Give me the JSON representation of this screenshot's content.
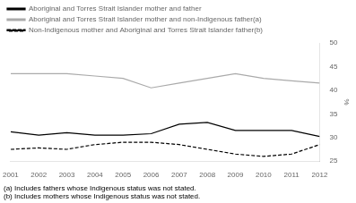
{
  "chart_data": {
    "type": "line",
    "x": [
      2001,
      2002,
      2003,
      2004,
      2005,
      2006,
      2007,
      2008,
      2009,
      2010,
      2011,
      2012
    ],
    "series": [
      {
        "name": "Aboriginal and Torres Strait Islander mother and father",
        "color": "#000000",
        "line_style": "solid",
        "values": [
          31.2,
          30.5,
          31.0,
          30.5,
          30.5,
          30.8,
          32.8,
          33.2,
          31.5,
          31.5,
          31.5,
          30.2
        ]
      },
      {
        "name": "Aboriginal and Torres Strait Islander mother and non-Indigenous father(a)",
        "color": "#aaaaaa",
        "line_style": "solid",
        "values": [
          43.5,
          43.5,
          43.5,
          43.0,
          42.5,
          40.5,
          41.5,
          42.5,
          43.5,
          42.5,
          42.0,
          41.5
        ]
      },
      {
        "name": "Non-Indigenous mother and Aboriginal and Torres Strait Islander father(b)",
        "color": "#000000",
        "line_style": "dashed",
        "values": [
          27.5,
          27.8,
          27.5,
          28.5,
          29.0,
          29.0,
          28.5,
          27.5,
          26.5,
          26.0,
          26.5,
          28.5
        ]
      }
    ],
    "ylabel": "%",
    "annotations": [
      "(a) Includes fathers whose Indigenous status was not stated.",
      "(b) Includes mothers whose Indigenous status was not stated."
    ],
    "xlim": [
      2001,
      2012
    ],
    "xticks": [
      2001,
      2002,
      2003,
      2004,
      2005,
      2006,
      2007,
      2008,
      2009,
      2010,
      2011,
      2012
    ],
    "ylim": [
      25,
      50
    ],
    "yticks": [
      25,
      30,
      35,
      40,
      45,
      50
    ],
    "grid": false,
    "legend": "top left"
  }
}
